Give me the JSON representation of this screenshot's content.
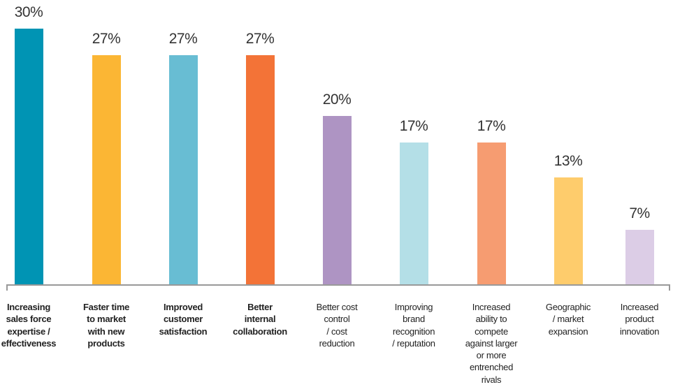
{
  "chart_data": {
    "type": "bar",
    "title": "",
    "xlabel": "",
    "ylabel": "",
    "ylim": [
      0,
      30
    ],
    "grid": false,
    "categories": [
      "Increasing sales force expertise / effectiveness",
      "Faster time to market with new products",
      "Improved customer satisfaction",
      "Better internal collaboration",
      "Better cost control / cost reduction",
      "Improving brand recognition / reputation",
      "Increased ability to compete against larger or more entrenched rivals",
      "Geographic / market expansion",
      "Increased product innovation"
    ],
    "category_lines": [
      [
        "Increasing",
        "sales force",
        "expertise /",
        "effectiveness"
      ],
      [
        "Faster time",
        "to market",
        "with new",
        "products"
      ],
      [
        "Improved",
        "customer",
        "satisfaction"
      ],
      [
        "Better",
        "internal",
        "collaboration"
      ],
      [
        "Better cost",
        "control",
        "/ cost",
        "reduction"
      ],
      [
        "Improving",
        "brand",
        "recognition",
        "/ reputation"
      ],
      [
        "Increased",
        "ability to",
        "compete",
        "against larger",
        "or more",
        "entrenched",
        "rivals"
      ],
      [
        "Geographic",
        "/ market",
        "expansion"
      ],
      [
        "Increased",
        "product",
        "innovation"
      ]
    ],
    "values": [
      30,
      27,
      27,
      27,
      20,
      17,
      17,
      13,
      7
    ],
    "value_labels": [
      "30%",
      "27%",
      "27%",
      "27%",
      "20%",
      "17%",
      "17%",
      "13%",
      "7%"
    ],
    "colors": [
      "#0094b4",
      "#fbb634",
      "#68bdd3",
      "#f37337",
      "#ae94c3",
      "#b4dfe7",
      "#f69c71",
      "#fecc6c",
      "#dccde6"
    ]
  }
}
